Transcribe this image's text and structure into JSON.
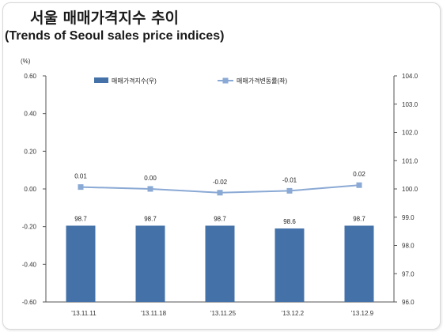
{
  "title": "서울 매매가격지수 추이",
  "subtitle": "(Trends of Seoul sales price indices)",
  "chart_data": {
    "type": "bar",
    "unit_label": "(%)",
    "categories": [
      "'13.11.11",
      "'13.11.18",
      "'13.11.25",
      "'13.12.2",
      "'13.12.9"
    ],
    "series": [
      {
        "name": "매매가격지수(우)",
        "type": "bar",
        "axis": "right",
        "values": [
          98.7,
          98.7,
          98.7,
          98.6,
          98.7
        ],
        "labels": [
          "98.7",
          "98.7",
          "98.7",
          "98.6",
          "98.7"
        ],
        "color": "#4472a8"
      },
      {
        "name": "매매가격변동률(좌)",
        "type": "line",
        "axis": "left",
        "values": [
          0.01,
          0.0,
          -0.02,
          -0.01,
          0.02
        ],
        "labels": [
          "0.01",
          "0.00",
          "-0.02",
          "-0.01",
          "0.02"
        ],
        "color": "#8aa9d4"
      }
    ],
    "y_left": {
      "range": [
        -0.6,
        0.6
      ],
      "ticks": [
        "0.60",
        "0.40",
        "0.20",
        "0.00",
        "-0.20",
        "-0.40",
        "-0.60"
      ]
    },
    "y_right": {
      "range": [
        96.0,
        104.0
      ],
      "ticks": [
        "104.0",
        "103.0",
        "102.0",
        "101.0",
        "100.0",
        "99.0",
        "98.0",
        "97.0",
        "96.0"
      ]
    },
    "legend_position": "top",
    "grid": false
  }
}
